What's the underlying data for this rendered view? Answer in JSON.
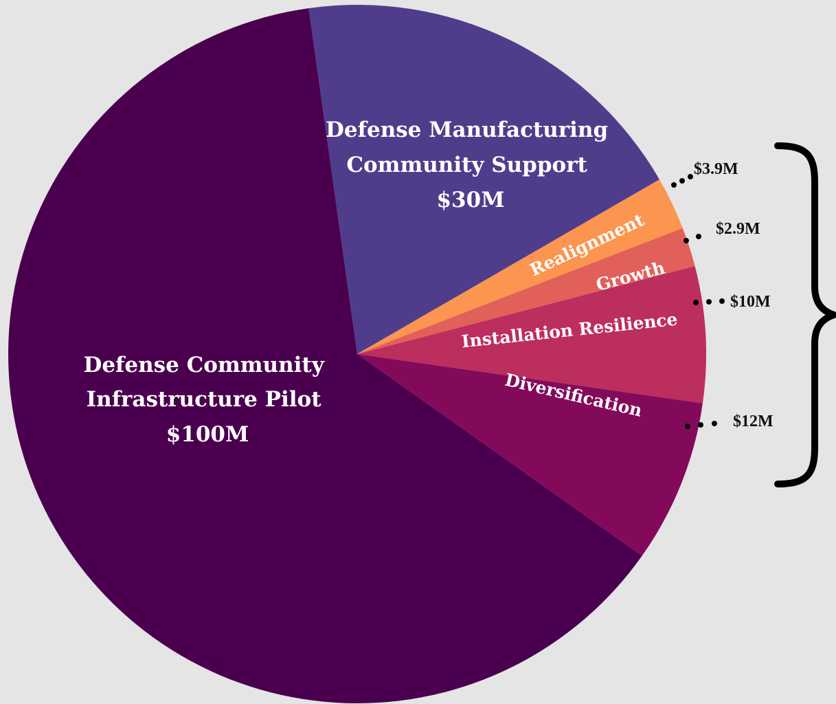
{
  "chart_data": {
    "type": "pie",
    "title": "",
    "slices": [
      {
        "label": "Defense Community Infrastructure Pilot",
        "value": 100,
        "value_label": "$100M",
        "color": "#4a004f"
      },
      {
        "label": "Defense Manufacturing Community Support",
        "value": 30,
        "value_label": "$30M",
        "color": "#4f3d8c"
      },
      {
        "label": "Realignment",
        "value": 3.9,
        "value_label": "$3.9M",
        "color": "#fb9550"
      },
      {
        "label": "Growth",
        "value": 2.9,
        "value_label": "$2.9M",
        "color": "#e2605a"
      },
      {
        "label": "Installation Resilience",
        "value": 10,
        "value_label": "$10M",
        "color": "#bc2e5d"
      },
      {
        "label": "Diversification",
        "value": 12,
        "value_label": "$12M",
        "color": "#830a5b"
      }
    ],
    "inner_labels": {
      "dcip": [
        "Defense Community",
        "Infrastructure Pilot",
        "$100M"
      ],
      "dmcs": [
        "Defense Manufacturing",
        "Community Support",
        "$30M"
      ]
    },
    "grouped_by_bracket": [
      "Realignment",
      "Growth",
      "Installation Resilience",
      "Diversification"
    ]
  }
}
